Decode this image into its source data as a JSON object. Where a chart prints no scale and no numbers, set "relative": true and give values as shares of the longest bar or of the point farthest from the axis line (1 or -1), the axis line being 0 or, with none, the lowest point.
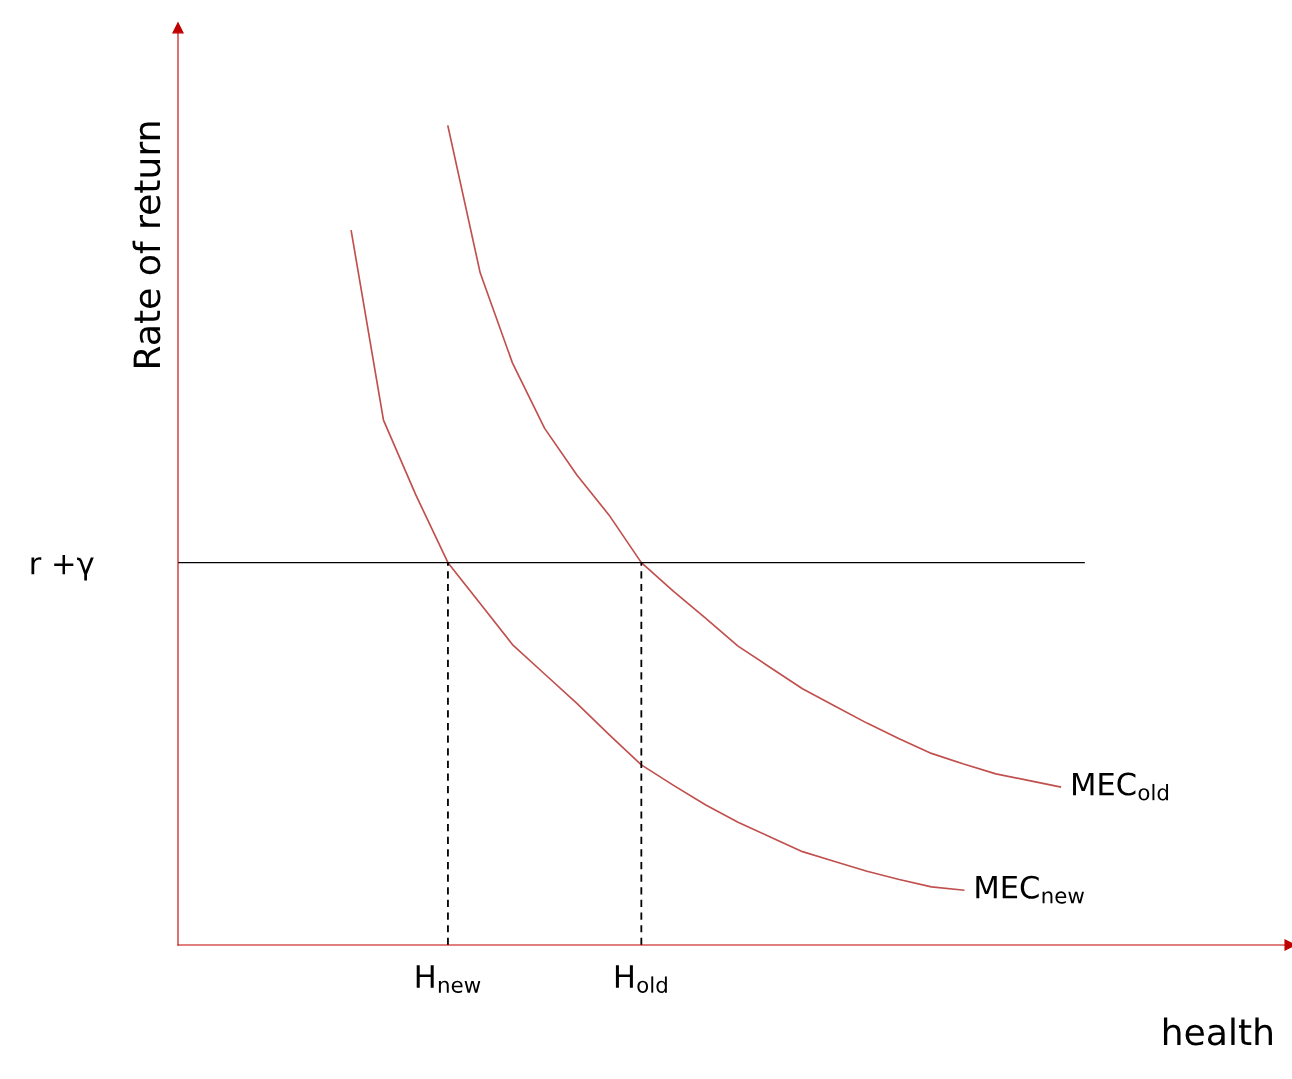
{
  "chart_data": {
    "type": "line",
    "relative": true,
    "xlabel": "health",
    "ylabel": "Rate of return",
    "categories": [
      null,
      null,
      null,
      null,
      "H$_{new}$",
      null,
      null,
      null,
      null,
      null,
      "H$_{old}$",
      null,
      null,
      null,
      null,
      null,
      null,
      null,
      null,
      null,
      null,
      null,
      null,
      null,
      null
    ],
    "series": [
      {
        "name": "MEC$_{old}$",
        "color": "#c0504d",
        "values": [
          null,
          null,
          null,
          null,
          1,
          0.821,
          0.711,
          0.631,
          0.574,
          0.525,
          0.467,
          0.432,
          0.399,
          0.365,
          0.339,
          0.313,
          0.292,
          0.271,
          0.252,
          0.234,
          0.221,
          0.209,
          0.201,
          0.193,
          null
        ]
      },
      {
        "name": "MEC$_{new}$",
        "color": "#c0504d",
        "values": [
          null,
          0.872,
          0.641,
          0.55,
          0.467,
          0.417,
          0.367,
          0.331,
          0.295,
          0.257,
          0.22,
          0.195,
          0.171,
          0.15,
          0.132,
          0.114,
          0.102,
          0.09,
          0.08,
          0.071,
          0.067,
          null,
          null,
          null,
          null
        ]
      }
    ],
    "ref_lines": [
      {
        "axis": "y",
        "value": 0.467,
        "label": "r +γ",
        "color": "#000000"
      },
      {
        "axis": "x",
        "value": "H$_{new}$",
        "color": "#000000",
        "line_style": "dashed"
      },
      {
        "axis": "x",
        "value": "H$_{old}$",
        "color": "#000000",
        "line_style": "dashed"
      }
    ],
    "grid": false,
    "legend": false
  }
}
